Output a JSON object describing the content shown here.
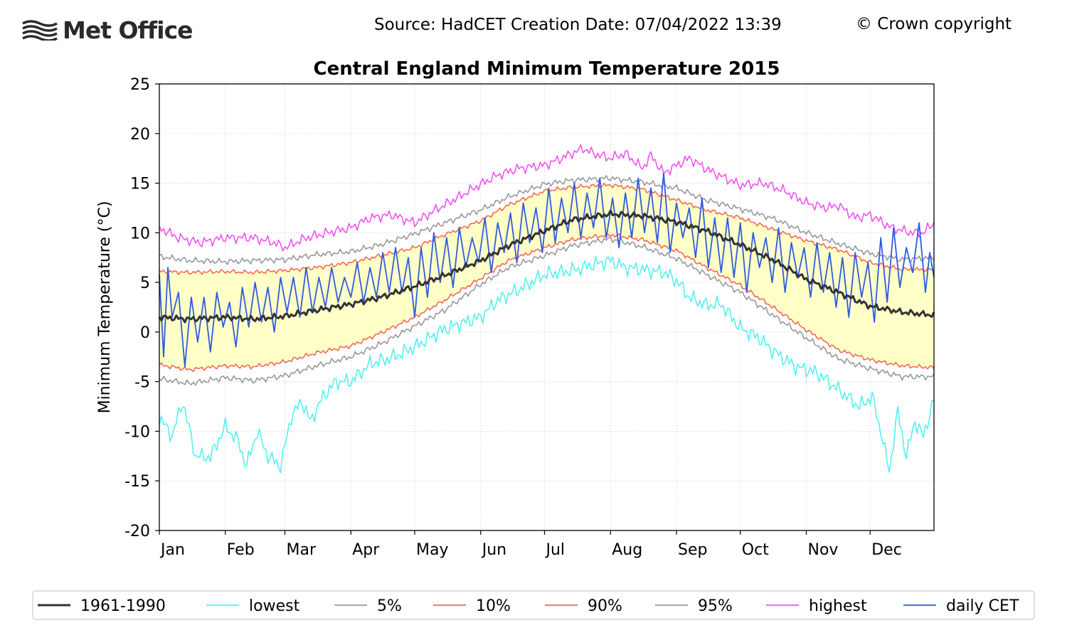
{
  "header": {
    "logo_text": "Met Office",
    "source_label": "Source: HadCET  Creation Date: 07/04/2022 13:39",
    "copyright": "© Crown copyright"
  },
  "colors": {
    "baseline": "#333333",
    "lowest": "#55f0f0",
    "pct5": "#999999",
    "pct10": "#f26b50",
    "pct90": "#f26b50",
    "pct95": "#999999",
    "highest": "#ee55ee",
    "daily": "#2f5be0",
    "band": "#ffffc8"
  },
  "chart_data": {
    "type": "line",
    "title": "Central England Minimum Temperature 2015",
    "xlabel": "",
    "ylabel": "Minimum Temperature (°C)",
    "ylim": [
      -20,
      25
    ],
    "y_ticks": [
      -20,
      -15,
      -10,
      -5,
      0,
      5,
      10,
      15,
      20,
      25
    ],
    "y_tick_labels": [
      "-20",
      "-15",
      "-10",
      "-5",
      "0",
      "5",
      "10",
      "15",
      "20",
      "25"
    ],
    "x_unit": "day of year",
    "xlim": [
      1,
      365
    ],
    "x_tick_days": [
      1,
      32,
      60,
      91,
      121,
      152,
      182,
      213,
      244,
      274,
      305,
      335
    ],
    "x_tick_labels": [
      "Jan",
      "Feb",
      "Mar",
      "Apr",
      "May",
      "Jun",
      "Jul",
      "Aug",
      "Sep",
      "Oct",
      "Nov",
      "Dec"
    ],
    "grid": true,
    "legend_position": "bottom",
    "shaded_band": [
      "10%",
      "90%"
    ],
    "series": [
      {
        "name": "1961-1990",
        "color_key": "baseline",
        "width": 3,
        "days": [
          1,
          15,
          32,
          45,
          60,
          75,
          91,
          105,
          121,
          135,
          152,
          165,
          182,
          195,
          213,
          228,
          244,
          258,
          274,
          290,
          305,
          320,
          335,
          350,
          365
        ],
        "values": [
          1.5,
          1.3,
          1.5,
          1.3,
          1.6,
          2.2,
          2.8,
          3.5,
          4.6,
          5.7,
          7.2,
          8.7,
          10.2,
          11.3,
          11.9,
          11.7,
          11.1,
          10.2,
          8.8,
          7.2,
          5.3,
          4.0,
          2.6,
          2.0,
          1.7
        ]
      },
      {
        "name": "lowest",
        "color_key": "lowest",
        "width": 1.6,
        "days": [
          1,
          7,
          12,
          18,
          25,
          32,
          38,
          42,
          47,
          52,
          58,
          63,
          68,
          72,
          78,
          84,
          91,
          100,
          110,
          121,
          135,
          152,
          160,
          170,
          182,
          195,
          205,
          213,
          220,
          228,
          238,
          244,
          250,
          258,
          265,
          274,
          282,
          290,
          300,
          310,
          320,
          330,
          336,
          340,
          344,
          348,
          352,
          356,
          360,
          365
        ],
        "values": [
          -8.6,
          -10.5,
          -7.0,
          -12.5,
          -12.6,
          -9.5,
          -11.0,
          -13.5,
          -10.0,
          -12.5,
          -13.5,
          -8.5,
          -7.0,
          -9.0,
          -6.5,
          -5.0,
          -5.0,
          -3.2,
          -2.6,
          -1.5,
          0.3,
          1.5,
          3.2,
          4.3,
          5.8,
          6.2,
          6.8,
          7.2,
          6.5,
          6.3,
          6.0,
          5.2,
          3.5,
          2.7,
          2.8,
          0.4,
          -0.5,
          -2.0,
          -3.5,
          -4.1,
          -5.8,
          -7.5,
          -6.5,
          -10.0,
          -14.0,
          -8.0,
          -12.5,
          -9.0,
          -10.5,
          -6.8
        ]
      },
      {
        "name": "5%",
        "color_key": "pct5",
        "width": 1.6,
        "days": [
          1,
          15,
          32,
          45,
          60,
          75,
          91,
          105,
          121,
          135,
          152,
          165,
          182,
          195,
          213,
          228,
          244,
          258,
          274,
          290,
          305,
          320,
          335,
          350,
          365
        ],
        "values": [
          -4.7,
          -5.2,
          -4.6,
          -4.9,
          -4.4,
          -3.4,
          -2.5,
          -1.2,
          0.6,
          2.2,
          4.8,
          6.5,
          7.7,
          8.7,
          9.4,
          8.6,
          7.4,
          5.8,
          4.0,
          1.6,
          -0.6,
          -2.7,
          -3.7,
          -4.5,
          -4.5
        ]
      },
      {
        "name": "10%",
        "color_key": "pct10",
        "width": 1.6,
        "days": [
          1,
          15,
          32,
          45,
          60,
          75,
          91,
          105,
          121,
          135,
          152,
          165,
          182,
          195,
          213,
          228,
          244,
          258,
          274,
          290,
          305,
          320,
          335,
          350,
          365
        ],
        "values": [
          -3.3,
          -3.8,
          -3.4,
          -3.5,
          -3.0,
          -2.1,
          -1.4,
          -0.1,
          1.5,
          3.2,
          5.4,
          7.2,
          8.5,
          9.3,
          9.8,
          9.3,
          8.2,
          6.5,
          4.7,
          2.4,
          0.2,
          -1.8,
          -2.8,
          -3.4,
          -3.6
        ]
      },
      {
        "name": "90%",
        "color_key": "pct90",
        "width": 1.6,
        "days": [
          1,
          15,
          32,
          45,
          60,
          75,
          91,
          105,
          121,
          135,
          152,
          165,
          182,
          195,
          213,
          228,
          244,
          258,
          274,
          290,
          305,
          320,
          335,
          350,
          365
        ],
        "values": [
          6.1,
          6.0,
          6.1,
          6.0,
          6.2,
          6.5,
          7.0,
          7.7,
          8.5,
          9.8,
          11.2,
          12.8,
          14.2,
          14.6,
          14.8,
          14.4,
          13.3,
          12.3,
          11.5,
          10.3,
          9.2,
          8.3,
          7.0,
          6.3,
          6.3
        ]
      },
      {
        "name": "95%",
        "color_key": "pct95",
        "width": 1.6,
        "days": [
          1,
          15,
          32,
          45,
          60,
          75,
          91,
          105,
          121,
          135,
          152,
          165,
          182,
          195,
          213,
          228,
          244,
          258,
          274,
          290,
          305,
          320,
          335,
          350,
          365
        ],
        "values": [
          7.6,
          7.2,
          7.1,
          7.2,
          7.3,
          7.8,
          8.1,
          8.8,
          9.9,
          11.0,
          12.3,
          13.6,
          14.9,
          15.3,
          15.5,
          15.1,
          14.5,
          13.3,
          12.4,
          11.4,
          10.0,
          8.9,
          7.9,
          7.3,
          7.5
        ]
      },
      {
        "name": "highest",
        "color_key": "highest",
        "width": 1.6,
        "days": [
          1,
          10,
          20,
          32,
          45,
          55,
          60,
          70,
          80,
          91,
          100,
          110,
          121,
          130,
          140,
          152,
          160,
          170,
          182,
          190,
          200,
          205,
          213,
          220,
          228,
          232,
          238,
          244,
          250,
          260,
          274,
          285,
          295,
          305,
          315,
          320,
          328,
          335,
          345,
          355,
          360,
          365
        ],
        "values": [
          10.5,
          9.5,
          9.0,
          9.5,
          9.5,
          9.0,
          8.5,
          9.5,
          10.0,
          10.5,
          11.5,
          11.8,
          11.0,
          12.2,
          13.4,
          14.9,
          15.8,
          16.5,
          16.8,
          17.5,
          18.5,
          18.0,
          17.5,
          18.0,
          16.5,
          17.8,
          16.0,
          16.8,
          17.5,
          16.2,
          14.8,
          15.0,
          14.2,
          13.0,
          12.5,
          12.8,
          11.5,
          11.8,
          10.5,
          10.0,
          10.0,
          11.0
        ]
      },
      {
        "name": "daily CET",
        "color_key": "daily",
        "width": 1.8,
        "days": [
          1,
          3,
          5,
          7,
          10,
          13,
          16,
          19,
          22,
          25,
          28,
          31,
          34,
          37,
          40,
          43,
          46,
          49,
          52,
          55,
          58,
          61,
          64,
          67,
          70,
          73,
          76,
          79,
          82,
          85,
          88,
          91,
          94,
          97,
          100,
          103,
          106,
          109,
          112,
          115,
          118,
          121,
          124,
          127,
          130,
          133,
          136,
          139,
          142,
          145,
          148,
          151,
          154,
          157,
          160,
          163,
          166,
          169,
          172,
          175,
          178,
          181,
          184,
          187,
          190,
          193,
          196,
          199,
          202,
          205,
          208,
          211,
          214,
          217,
          220,
          223,
          226,
          229,
          232,
          235,
          238,
          241,
          244,
          247,
          250,
          253,
          256,
          259,
          262,
          265,
          268,
          271,
          274,
          277,
          280,
          283,
          286,
          289,
          292,
          295,
          298,
          301,
          304,
          307,
          310,
          313,
          316,
          319,
          322,
          325,
          328,
          331,
          334,
          337,
          340,
          343,
          346,
          349,
          352,
          355,
          358,
          361,
          363,
          365
        ],
        "values": [
          5.8,
          -2.5,
          6.5,
          1.5,
          4.0,
          -3.5,
          3.5,
          -1.0,
          3.5,
          -2.0,
          4.0,
          0.5,
          3.0,
          -1.5,
          4.5,
          0.5,
          5.0,
          1.0,
          4.5,
          0.0,
          5.5,
          2.0,
          5.5,
          1.5,
          6.5,
          2.0,
          5.5,
          2.5,
          6.5,
          3.0,
          5.5,
          3.5,
          7.0,
          3.0,
          6.5,
          3.5,
          8.0,
          4.0,
          8.5,
          4.0,
          7.5,
          1.5,
          8.5,
          3.5,
          10.0,
          5.0,
          9.5,
          4.5,
          10.5,
          6.5,
          9.5,
          7.0,
          11.5,
          6.0,
          11.0,
          8.0,
          12.0,
          7.0,
          13.0,
          9.0,
          12.5,
          8.0,
          14.5,
          9.0,
          13.5,
          10.0,
          15.0,
          9.5,
          14.0,
          10.5,
          15.5,
          9.5,
          13.5,
          8.5,
          14.0,
          9.5,
          15.5,
          10.0,
          14.5,
          9.0,
          16.0,
          8.0,
          13.0,
          9.5,
          12.5,
          7.5,
          13.5,
          6.5,
          11.5,
          6.0,
          11.5,
          5.5,
          11.0,
          4.0,
          10.0,
          6.5,
          9.5,
          5.0,
          10.5,
          4.0,
          9.0,
          5.5,
          8.5,
          3.5,
          9.0,
          4.0,
          8.0,
          2.5,
          7.5,
          1.5,
          8.0,
          3.5,
          7.0,
          1.0,
          9.5,
          3.0,
          10.5,
          4.5,
          8.5,
          6.0,
          11.0,
          4.0,
          8.0,
          5.5
        ]
      }
    ]
  }
}
